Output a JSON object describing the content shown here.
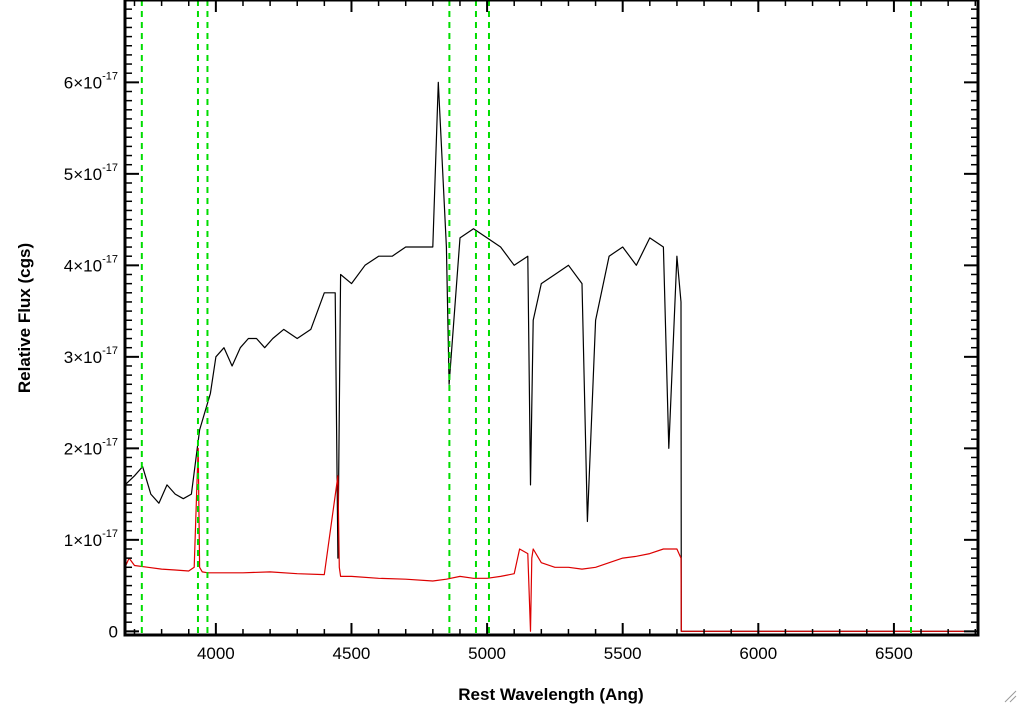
{
  "chart_data": {
    "type": "line",
    "xlabel": "Rest Wavelength (Ang)",
    "ylabel": "Relative Flux (cgs)",
    "xlim": [
      3665,
      6810
    ],
    "ylim": [
      -4e-19,
      6.9e-17
    ],
    "x_ticks": [
      4000,
      4500,
      5000,
      5500,
      6000,
      6500
    ],
    "y_ticks": [
      {
        "value": 0,
        "mantissa": "0",
        "exponent": ""
      },
      {
        "value": 1e-17,
        "mantissa": "1×10",
        "exponent": "-17"
      },
      {
        "value": 2e-17,
        "mantissa": "2×10",
        "exponent": "-17"
      },
      {
        "value": 3e-17,
        "mantissa": "3×10",
        "exponent": "-17"
      },
      {
        "value": 4e-17,
        "mantissa": "4×10",
        "exponent": "-17"
      },
      {
        "value": 5e-17,
        "mantissa": "5×10",
        "exponent": "-17"
      },
      {
        "value": 6e-17,
        "mantissa": "6×10",
        "exponent": "-17"
      }
    ],
    "grid": false,
    "series": [
      {
        "color": "#000000",
        "x": [
          3665,
          3700,
          3730,
          3760,
          3790,
          3820,
          3850,
          3880,
          3910,
          3940,
          3960,
          3980,
          4000,
          4030,
          4060,
          4090,
          4120,
          4150,
          4180,
          4210,
          4250,
          4300,
          4350,
          4400,
          4440,
          4450,
          4460,
          4500,
          4550,
          4600,
          4650,
          4700,
          4750,
          4800,
          4820,
          4850,
          4860,
          4900,
          4950,
          5000,
          5050,
          5100,
          5150,
          5160,
          5170,
          5200,
          5250,
          5300,
          5350,
          5370,
          5400,
          5450,
          5500,
          5550,
          5600,
          5650,
          5670,
          5700,
          5715,
          5716,
          6810
        ],
        "y": [
          1.6e-17,
          1.7e-17,
          1.8e-17,
          1.5e-17,
          1.4e-17,
          1.6e-17,
          1.5e-17,
          1.45e-17,
          1.5e-17,
          2.2e-17,
          2.4e-17,
          2.6e-17,
          3e-17,
          3.1e-17,
          2.9e-17,
          3.1e-17,
          3.2e-17,
          3.2e-17,
          3.1e-17,
          3.2e-17,
          3.3e-17,
          3.2e-17,
          3.3e-17,
          3.7e-17,
          3.7e-17,
          8e-18,
          3.9e-17,
          3.8e-17,
          4e-17,
          4.1e-17,
          4.1e-17,
          4.2e-17,
          4.2e-17,
          4.2e-17,
          6e-17,
          4.2e-17,
          2.7e-17,
          4.3e-17,
          4.4e-17,
          4.3e-17,
          4.2e-17,
          4e-17,
          4.1e-17,
          1.6e-17,
          3.4e-17,
          3.8e-17,
          3.9e-17,
          4e-17,
          3.8e-17,
          1.2e-17,
          3.4e-17,
          4.1e-17,
          4.2e-17,
          4e-17,
          4.3e-17,
          4.2e-17,
          2e-17,
          4.1e-17,
          3.6e-17,
          0,
          0
        ]
      },
      {
        "color": "#dd0000",
        "x": [
          3665,
          3680,
          3700,
          3750,
          3800,
          3850,
          3900,
          3920,
          3930,
          3935,
          3940,
          3950,
          3970,
          4000,
          4100,
          4200,
          4300,
          4400,
          4450,
          4455,
          4460,
          4500,
          4600,
          4700,
          4800,
          4850,
          4900,
          4950,
          5000,
          5050,
          5100,
          5120,
          5150,
          5160,
          5165,
          5170,
          5200,
          5250,
          5300,
          5350,
          5400,
          5450,
          5500,
          5550,
          5600,
          5650,
          5700,
          5715,
          5716,
          6810
        ],
        "y": [
          7e-18,
          8e-18,
          7.2e-18,
          7e-18,
          6.8e-18,
          6.7e-18,
          6.6e-18,
          7e-18,
          1.6e-17,
          2e-17,
          7e-18,
          6.5e-18,
          6.4e-18,
          6.4e-18,
          6.4e-18,
          6.5e-18,
          6.3e-18,
          6.2e-18,
          1.7e-17,
          7e-18,
          6e-18,
          6e-18,
          5.8e-18,
          5.7e-18,
          5.5e-18,
          5.7e-18,
          6e-18,
          5.8e-18,
          5.8e-18,
          6e-18,
          6.3e-18,
          9e-18,
          8.5e-18,
          0,
          8e-18,
          9e-18,
          7.5e-18,
          7e-18,
          7e-18,
          6.8e-18,
          7e-18,
          7.5e-18,
          8e-18,
          8.2e-18,
          8.5e-18,
          9e-18,
          9e-18,
          8e-18,
          0,
          0
        ]
      }
    ],
    "vertical_lines": {
      "color": "#00dd00",
      "style": "dashed",
      "x": [
        3727,
        3934,
        3969,
        4861,
        4959,
        5007,
        6563
      ]
    }
  }
}
